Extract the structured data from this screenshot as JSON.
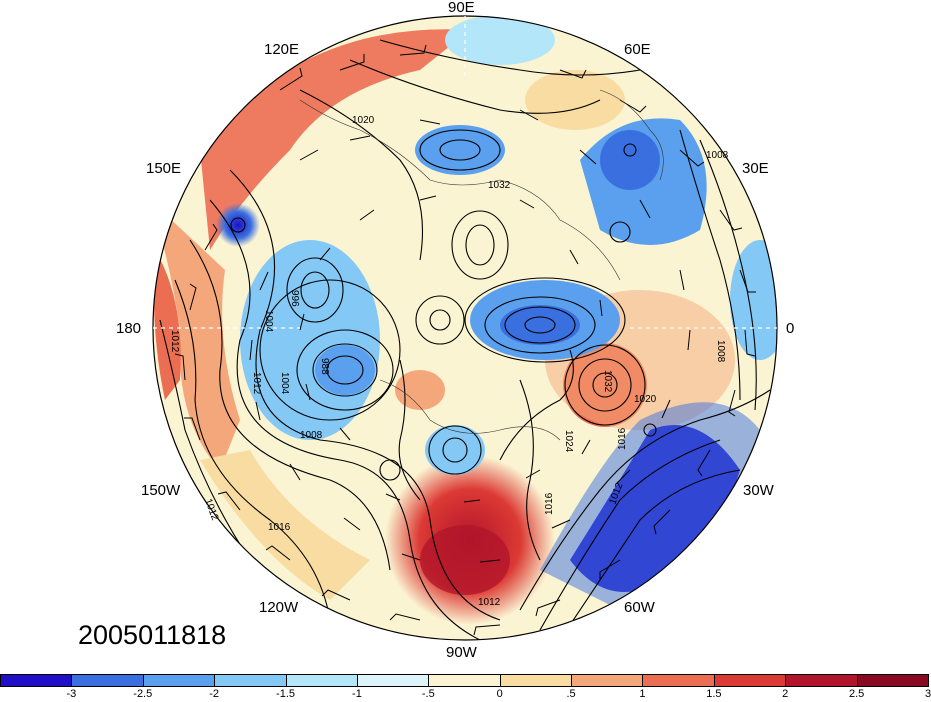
{
  "timestamp": "2005011818",
  "longitude_labels": {
    "n": "90E",
    "ne": "60E",
    "nne": "30E",
    "e": "0",
    "sse": "30W",
    "se": "60W",
    "s": "90W",
    "sw": "120W",
    "wsw": "150W",
    "w": "180",
    "wnw": "150E",
    "nw": "120E"
  },
  "contour_labels": [
    "1020",
    "1008",
    "1032",
    "1012",
    "1004",
    "996",
    "988",
    "1012",
    "1004",
    "1008",
    "1032",
    "1020",
    "1024",
    "1016",
    "1012",
    "1016",
    "1012",
    "1016",
    "1012",
    "1008"
  ],
  "colorbar": {
    "colors": [
      "#1f10c8",
      "#3a6fe0",
      "#5aa0ef",
      "#84c8f5",
      "#b4e6f9",
      "#def4fb",
      "#fbf4d2",
      "#f8dca2",
      "#f4a77a",
      "#ec6e52",
      "#dc3a34",
      "#b2152b",
      "#8a0a22"
    ],
    "ticks": [
      "-3",
      "-2.5",
      "-2",
      "-1.5",
      "-1",
      "-.5",
      "0",
      ".5",
      "1",
      "1.5",
      "2",
      "2.5",
      "3"
    ]
  }
}
